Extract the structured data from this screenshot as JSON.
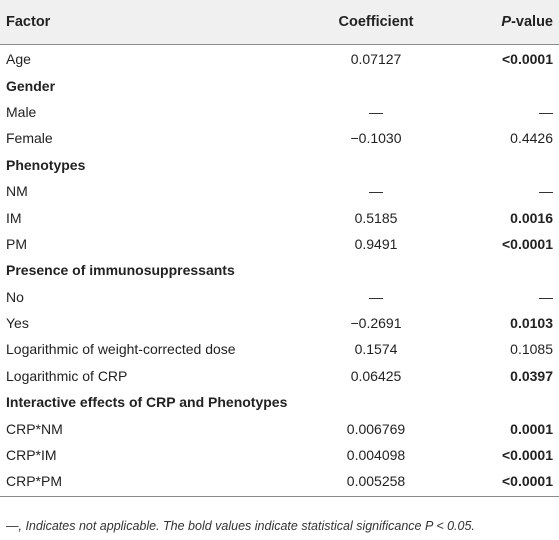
{
  "header": {
    "factor": "Factor",
    "coefficient": "Coefficient",
    "pvalue_p": "P",
    "pvalue_rest": "-value"
  },
  "rows": [
    {
      "type": "data",
      "factor": "Age",
      "coefficient": "0.07127",
      "pvalue": "<0.0001",
      "bold": true
    },
    {
      "type": "section",
      "factor": "Gender"
    },
    {
      "type": "data",
      "factor": "Male",
      "coefficient": "—",
      "pvalue": "—",
      "bold": false
    },
    {
      "type": "data",
      "factor": "Female",
      "coefficient": "−0.1030",
      "pvalue": "0.4426",
      "bold": false
    },
    {
      "type": "section",
      "factor": "Phenotypes"
    },
    {
      "type": "data",
      "factor": "NM",
      "coefficient": "—",
      "pvalue": "—",
      "bold": false
    },
    {
      "type": "data",
      "factor": "IM",
      "coefficient": "0.5185",
      "pvalue": "0.0016",
      "bold": true
    },
    {
      "type": "data",
      "factor": "PM",
      "coefficient": "0.9491",
      "pvalue": "<0.0001",
      "bold": true
    },
    {
      "type": "section",
      "factor": "Presence of immunosuppressants"
    },
    {
      "type": "data",
      "factor": "No",
      "coefficient": "—",
      "pvalue": "—",
      "bold": false
    },
    {
      "type": "data",
      "factor": "Yes",
      "coefficient": "−0.2691",
      "pvalue": "0.0103",
      "bold": true
    },
    {
      "type": "data",
      "factor": "Logarithmic of weight-corrected dose",
      "coefficient": "0.1574",
      "pvalue": "0.1085",
      "bold": false
    },
    {
      "type": "data",
      "factor": "Logarithmic of CRP",
      "coefficient": "0.06425",
      "pvalue": "0.0397",
      "bold": true
    },
    {
      "type": "section",
      "factor": "Interactive effects of CRP and Phenotypes"
    },
    {
      "type": "data",
      "factor": "CRP*NM",
      "coefficient": "0.006769",
      "pvalue": "0.0001",
      "bold": true
    },
    {
      "type": "data",
      "factor": "CRP*IM",
      "coefficient": "0.004098",
      "pvalue": "<0.0001",
      "bold": true
    },
    {
      "type": "data",
      "factor": "CRP*PM",
      "coefficient": "0.005258",
      "pvalue": "<0.0001",
      "bold": true
    }
  ],
  "footnote": "—, Indicates not applicable. The bold values indicate statistical significance P < 0.05."
}
